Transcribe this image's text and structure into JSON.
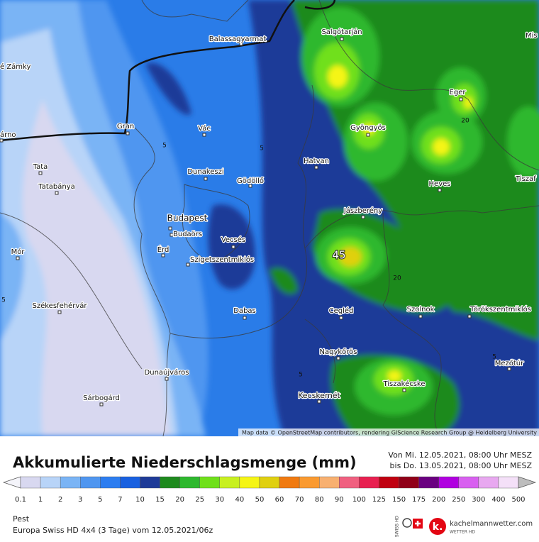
{
  "map": {
    "attribution": "Map data © OpenStreetMap contributors, rendering GIScience Research Group @ Heidelberg University",
    "places": [
      "Balassagyarmat",
      "Salgótarján",
      "Mis",
      "é Zámky",
      "Eger",
      "Gran",
      "Vác",
      "Gyöngyös",
      "árno",
      "Tata",
      "Hatvan",
      "Dunakeszi",
      "Gödöllő",
      "Tatabánya",
      "Heves",
      "Tiszaf",
      "Jászberény",
      "Budapest",
      "Budaörs",
      "Vecsés",
      "Érd",
      "Mór",
      "Szigetszentmiklós",
      "Székesfehérvár",
      "Cegléd",
      "Szolnok",
      "Törökszentmiklós",
      "Dabas",
      "Nagykőrös",
      "Dunaújváros",
      "Mezőtúr",
      "Tiszakécske",
      "Kecskemét",
      "Sárbogárd"
    ],
    "contour_labels": [
      "5",
      "5",
      "20",
      "20",
      "45",
      "5",
      "5",
      "5"
    ]
  },
  "legend": {
    "title": "Akkumulierte Niederschlagsmenge (mm)",
    "period_from": "Von Mi. 12.05.2021, 08:00 Uhr MESZ",
    "period_to": "bis Do. 13.05.2021, 08:00 Uhr MESZ",
    "ticks": [
      "0.1",
      "1",
      "2",
      "3",
      "5",
      "7",
      "10",
      "15",
      "20",
      "25",
      "30",
      "40",
      "50",
      "60",
      "70",
      "80",
      "90",
      "100",
      "125",
      "150",
      "175",
      "200",
      "250",
      "300",
      "400",
      "500"
    ],
    "below_color": "#f4f4fa",
    "colors": [
      "#d8d8f0",
      "#b8d4f8",
      "#7ab4f5",
      "#4f96f0",
      "#2c7df0",
      "#1860e0",
      "#1e3b98",
      "#1e8a1e",
      "#2db82d",
      "#6fe01a",
      "#c8f020",
      "#f5f515",
      "#e0d010",
      "#f07a10",
      "#fa9a30",
      "#f8b070",
      "#f06080",
      "#e82050",
      "#c00010",
      "#900018",
      "#6a0080",
      "#b000e0",
      "#d860f0",
      "#e8a8f0",
      "#f4e0f8"
    ],
    "above_color": "#bdbdbd"
  },
  "footer": {
    "region": "Pest",
    "model": "Europa Swiss HD 4x4 (3 Tage) vom 12.05.2021/06z",
    "swiss": "SWISS HD",
    "logo_text": "kachelmannwetter.com",
    "logo_sub": "WETTER HD"
  }
}
